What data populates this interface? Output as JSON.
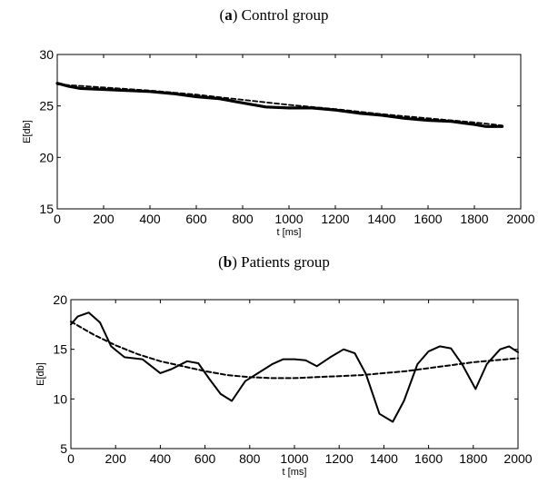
{
  "chart_data": [
    {
      "type": "line",
      "title_letter": "a",
      "title_text": "Control group",
      "xlabel": "t [ms]",
      "ylabel": "E[db]",
      "xlim": [
        0,
        2000
      ],
      "ylim": [
        15,
        30
      ],
      "xticks": [
        0,
        200,
        400,
        600,
        800,
        1000,
        1200,
        1400,
        1600,
        1800,
        2000
      ],
      "yticks": [
        15,
        20,
        25,
        30
      ],
      "grid": false,
      "series": [
        {
          "style": "solid",
          "x": [
            0,
            50,
            100,
            200,
            300,
            400,
            500,
            600,
            700,
            800,
            900,
            1000,
            1100,
            1200,
            1300,
            1400,
            1500,
            1600,
            1700,
            1800,
            1850,
            1920
          ],
          "y": [
            27.2,
            26.9,
            26.7,
            26.6,
            26.5,
            26.4,
            26.2,
            25.9,
            25.7,
            25.3,
            24.9,
            24.8,
            24.8,
            24.6,
            24.3,
            24.1,
            23.8,
            23.6,
            23.5,
            23.2,
            23.0,
            23.0
          ]
        },
        {
          "style": "dashed",
          "x": [
            0,
            200,
            400,
            600,
            800,
            1000,
            1200,
            1400,
            1600,
            1800,
            1920
          ],
          "y": [
            27.1,
            26.8,
            26.5,
            26.1,
            25.6,
            25.1,
            24.7,
            24.2,
            23.8,
            23.4,
            23.1
          ]
        }
      ]
    },
    {
      "type": "line",
      "title_letter": "b",
      "title_text": "Patients group",
      "xlabel": "t  [ms]",
      "ylabel": "E[db]",
      "xlim": [
        0,
        2000
      ],
      "ylim": [
        5,
        20
      ],
      "xticks": [
        0,
        200,
        400,
        600,
        800,
        1000,
        1200,
        1400,
        1600,
        1800,
        2000
      ],
      "yticks": [
        5,
        10,
        15,
        20
      ],
      "grid": false,
      "series": [
        {
          "style": "solid",
          "x": [
            0,
            30,
            80,
            130,
            180,
            240,
            320,
            400,
            450,
            520,
            570,
            620,
            670,
            720,
            780,
            830,
            900,
            950,
            1000,
            1050,
            1100,
            1160,
            1220,
            1270,
            1320,
            1380,
            1440,
            1490,
            1550,
            1600,
            1650,
            1700,
            1750,
            1810,
            1860,
            1920,
            1960,
            2000
          ],
          "y": [
            17.5,
            18.3,
            18.7,
            17.7,
            15.3,
            14.2,
            14.0,
            12.6,
            13.0,
            13.8,
            13.6,
            12.0,
            10.5,
            9.8,
            11.8,
            12.5,
            13.5,
            14.0,
            14.0,
            13.9,
            13.3,
            14.2,
            15.0,
            14.6,
            12.5,
            8.5,
            7.7,
            9.8,
            13.5,
            14.8,
            15.3,
            15.1,
            13.5,
            11.0,
            13.5,
            15.0,
            15.3,
            14.7
          ]
        },
        {
          "style": "dashed",
          "x": [
            0,
            100,
            200,
            300,
            400,
            500,
            600,
            700,
            800,
            900,
            1000,
            1100,
            1200,
            1300,
            1400,
            1500,
            1600,
            1700,
            1800,
            1900,
            2000
          ],
          "y": [
            17.8,
            16.5,
            15.4,
            14.5,
            13.8,
            13.3,
            12.8,
            12.4,
            12.2,
            12.1,
            12.1,
            12.2,
            12.3,
            12.4,
            12.6,
            12.8,
            13.1,
            13.4,
            13.7,
            13.9,
            14.1
          ]
        }
      ]
    }
  ]
}
